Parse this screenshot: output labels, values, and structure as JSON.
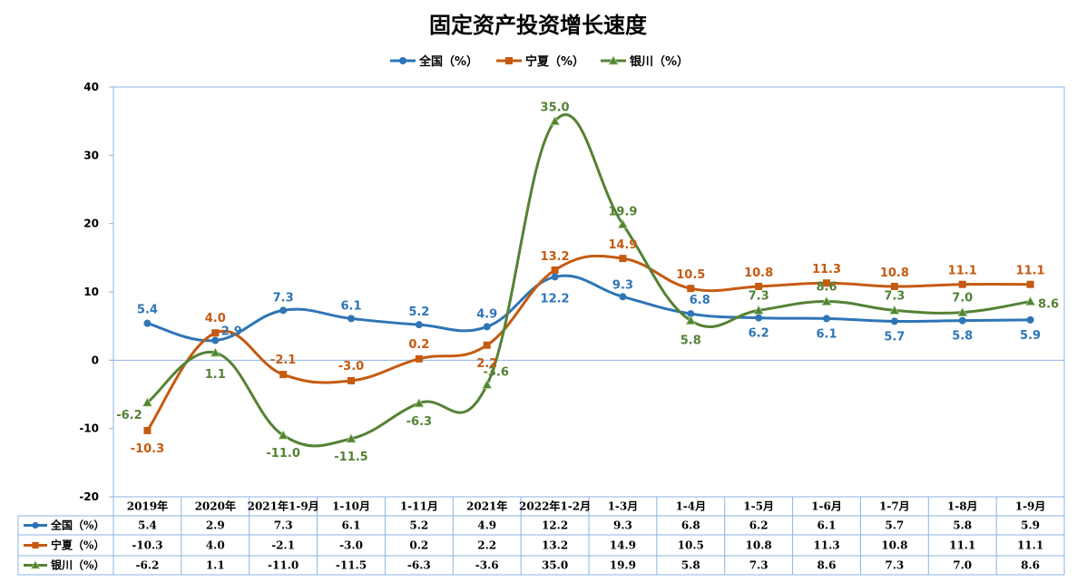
{
  "chart_data": {
    "type": "line",
    "title": "固定资产投资增长速度",
    "categories": [
      "2019年",
      "2020年",
      "2021年1-9月",
      "1-10月",
      "1-11月",
      "2021年",
      "2022年1-2月",
      "1-3月",
      "1-4月",
      "1-5月",
      "1-6月",
      "1-7月",
      "1-8月",
      "1-9月"
    ],
    "series": [
      {
        "name": "全国（%）",
        "color": "#2e75b6",
        "marker": "circle",
        "values": [
          5.4,
          2.9,
          7.3,
          6.1,
          5.2,
          4.9,
          12.2,
          9.3,
          6.8,
          6.2,
          6.1,
          5.7,
          5.8,
          5.9
        ],
        "labels": [
          "5.4",
          "2.9",
          "7.3",
          "6.1",
          "5.2",
          "4.9",
          "12.2",
          "9.3",
          "6.8",
          "6.2",
          "6.1",
          "5.7",
          "5.8",
          "5.9"
        ]
      },
      {
        "name": "宁夏（%）",
        "color": "#c55a11",
        "marker": "square",
        "values": [
          -10.3,
          4.0,
          -2.1,
          -3.0,
          0.2,
          2.2,
          13.2,
          14.9,
          10.5,
          10.8,
          11.3,
          10.8,
          11.1,
          11.1
        ],
        "labels": [
          "-10.3",
          "4.0",
          "-2.1",
          "-3.0",
          "0.2",
          "2.2",
          "13.2",
          "14.9",
          "10.5",
          "10.8",
          "11.3",
          "10.8",
          "11.1",
          "11.1"
        ]
      },
      {
        "name": "银川（%）",
        "color": "#548235",
        "marker": "triangle",
        "values": [
          -6.2,
          1.1,
          -11.0,
          -11.5,
          -6.3,
          -3.6,
          35.0,
          19.9,
          5.8,
          7.3,
          8.6,
          7.3,
          7.0,
          8.6
        ],
        "labels": [
          "-6.2",
          "1.1",
          "-11.0",
          "-11.5",
          "-6.3",
          "-3.6",
          "35.0",
          "19.9",
          "5.8",
          "7.3",
          "8.6",
          "7.3",
          "7.0",
          "8.6"
        ]
      }
    ],
    "ylim": [
      -20,
      40
    ],
    "yticks": [
      "-20",
      "-10",
      "0",
      "10",
      "20",
      "30",
      "40"
    ],
    "legend_position": "top",
    "data_table": true
  }
}
